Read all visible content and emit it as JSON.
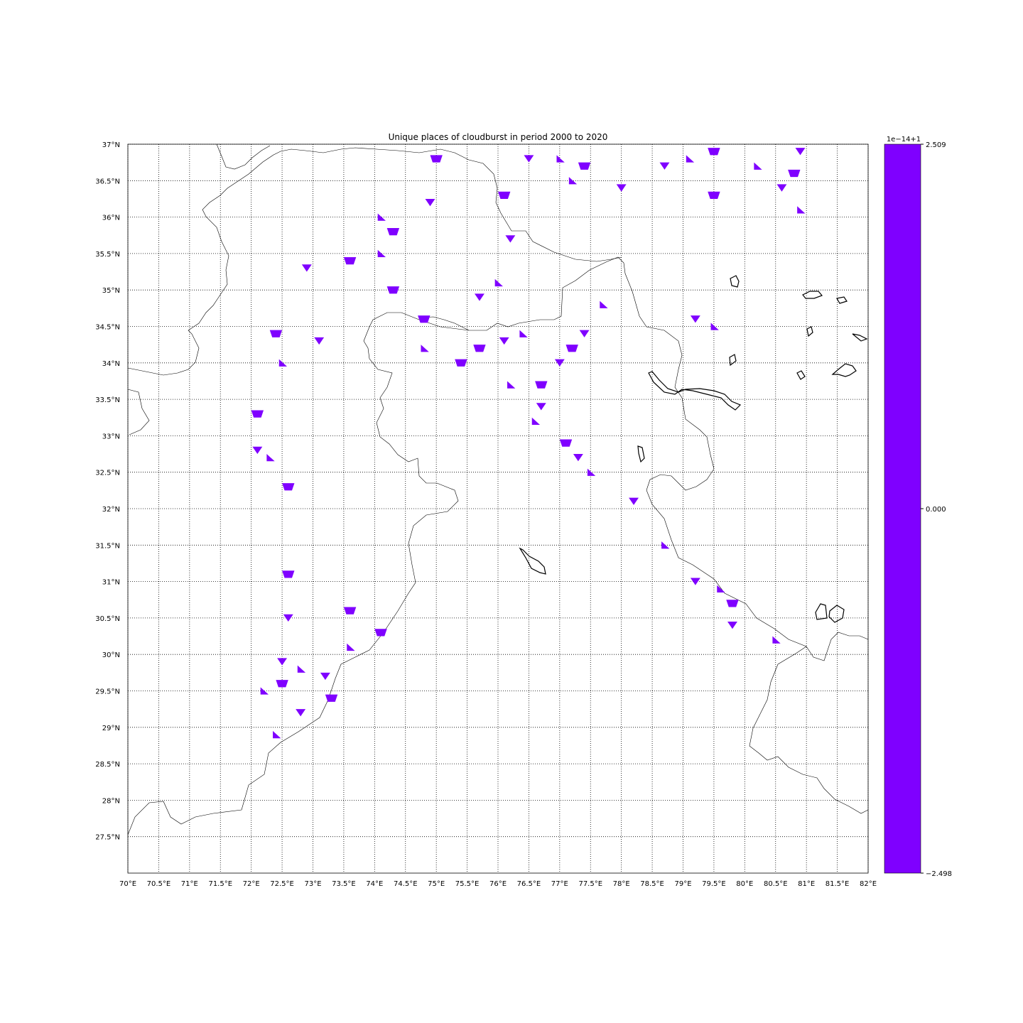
{
  "chart_data": {
    "type": "heatmap",
    "title": "Unique places of cloudburst in period 2000 to 2020",
    "projection": "lat-lon map",
    "grid": true,
    "xlim": [
      70,
      82
    ],
    "ylim": [
      27.0,
      37.0
    ],
    "x_ticks": [
      70,
      70.5,
      71,
      71.5,
      72,
      72.5,
      73,
      73.5,
      74,
      74.5,
      75,
      75.5,
      76,
      76.5,
      77,
      77.5,
      78,
      78.5,
      79,
      79.5,
      80,
      80.5,
      81,
      81.5,
      82
    ],
    "x_tick_labels": [
      "70°E",
      "70.5°E",
      "71°E",
      "71.5°E",
      "72°E",
      "72.5°E",
      "73°E",
      "73.5°E",
      "74°E",
      "74.5°E",
      "75°E",
      "75.5°E",
      "76°E",
      "76.5°E",
      "77°E",
      "77.5°E",
      "78°E",
      "78.5°E",
      "79°E",
      "79.5°E",
      "80°E",
      "80.5°E",
      "81°E",
      "81.5°E",
      "82°E"
    ],
    "y_ticks": [
      27.5,
      28,
      28.5,
      29,
      29.5,
      30,
      30.5,
      31,
      31.5,
      32,
      32.5,
      33,
      33.5,
      34,
      34.5,
      35,
      35.5,
      36,
      36.5,
      37
    ],
    "y_tick_labels": [
      "27.5°N",
      "28°N",
      "28.5°N",
      "29°N",
      "29.5°N",
      "30°N",
      "30.5°N",
      "31°N",
      "31.5°N",
      "32°N",
      "32.5°N",
      "33°N",
      "33.5°N",
      "34°N",
      "34.5°N",
      "35°N",
      "35.5°N",
      "36°N",
      "36.5°N",
      "37°N"
    ],
    "fill_color": "#7f00ff",
    "cloudburst_cells": [
      [
        75.0,
        36.8
      ],
      [
        76.5,
        36.8
      ],
      [
        77.0,
        36.8
      ],
      [
        77.4,
        36.7
      ],
      [
        78.0,
        36.4
      ],
      [
        79.1,
        36.8
      ],
      [
        79.5,
        36.9
      ],
      [
        80.9,
        36.9
      ],
      [
        80.2,
        36.7
      ],
      [
        80.8,
        36.6
      ],
      [
        80.6,
        36.4
      ],
      [
        80.9,
        36.1
      ],
      [
        79.5,
        36.3
      ],
      [
        78.7,
        36.7
      ],
      [
        77.2,
        36.5
      ],
      [
        76.1,
        36.3
      ],
      [
        74.9,
        36.2
      ],
      [
        74.1,
        36.0
      ],
      [
        74.3,
        35.8
      ],
      [
        76.2,
        35.7
      ],
      [
        74.1,
        35.5
      ],
      [
        73.6,
        35.4
      ],
      [
        72.9,
        35.3
      ],
      [
        76.0,
        35.1
      ],
      [
        74.3,
        35.0
      ],
      [
        75.7,
        34.9
      ],
      [
        77.7,
        34.8
      ],
      [
        74.8,
        34.6
      ],
      [
        79.2,
        34.6
      ],
      [
        79.5,
        34.5
      ],
      [
        72.4,
        34.4
      ],
      [
        73.1,
        34.3
      ],
      [
        74.8,
        34.2
      ],
      [
        75.7,
        34.2
      ],
      [
        76.1,
        34.3
      ],
      [
        76.4,
        34.4
      ],
      [
        77.2,
        34.2
      ],
      [
        77.4,
        34.4
      ],
      [
        72.5,
        34.0
      ],
      [
        75.4,
        34.0
      ],
      [
        77.0,
        34.0
      ],
      [
        76.2,
        33.7
      ],
      [
        76.7,
        33.7
      ],
      [
        76.7,
        33.4
      ],
      [
        76.6,
        33.2
      ],
      [
        72.1,
        33.3
      ],
      [
        72.1,
        32.8
      ],
      [
        72.3,
        32.7
      ],
      [
        77.1,
        32.9
      ],
      [
        77.3,
        32.7
      ],
      [
        77.5,
        32.5
      ],
      [
        72.6,
        32.3
      ],
      [
        78.2,
        32.1
      ],
      [
        78.7,
        31.5
      ],
      [
        72.6,
        31.1
      ],
      [
        79.2,
        31.0
      ],
      [
        79.6,
        30.9
      ],
      [
        79.8,
        30.7
      ],
      [
        79.8,
        30.4
      ],
      [
        80.5,
        30.2
      ],
      [
        73.6,
        30.6
      ],
      [
        72.6,
        30.5
      ],
      [
        73.6,
        30.1
      ],
      [
        74.1,
        30.3
      ],
      [
        72.5,
        29.9
      ],
      [
        72.8,
        29.8
      ],
      [
        72.5,
        29.6
      ],
      [
        73.2,
        29.7
      ],
      [
        72.2,
        29.5
      ],
      [
        73.3,
        29.4
      ],
      [
        72.8,
        29.2
      ],
      [
        72.4,
        28.9
      ]
    ],
    "colorbar": {
      "offset_label": "1e−14+1",
      "tick_labels": [
        "2.509",
        "0.000",
        "−2.498"
      ],
      "color": "#7f00ff"
    }
  }
}
